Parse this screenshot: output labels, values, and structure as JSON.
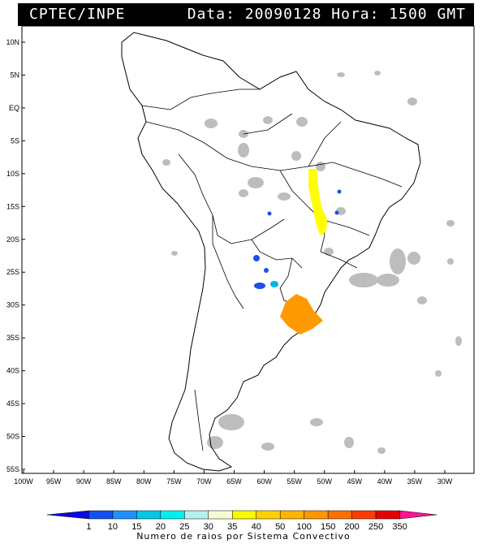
{
  "header": {
    "source": "CPTEC/INPE",
    "datetime": "Data: 20090128 Hora: 1500 GMT"
  },
  "lat_labels": [
    "10N",
    "5N",
    "EQ",
    "5S",
    "10S",
    "15S",
    "20S",
    "25S",
    "30S",
    "35S",
    "40S",
    "45S",
    "50S",
    "55S"
  ],
  "lon_labels": [
    "100W",
    "95W",
    "90W",
    "85W",
    "80W",
    "75W",
    "70W",
    "65W",
    "60W",
    "55W",
    "50W",
    "45W",
    "40W",
    "35W",
    "30W"
  ],
  "legend": {
    "title": "Numero de raios por Sistema Convectivo",
    "values": [
      "1",
      "10",
      "15",
      "20",
      "25",
      "30",
      "35",
      "40",
      "50",
      "100",
      "150",
      "200",
      "250",
      "350"
    ],
    "colors": [
      "#0a0ae0",
      "#1450f0",
      "#1e90ff",
      "#00c8e6",
      "#00f0f0",
      "#b4f0f0",
      "#fafad2",
      "#fafa00",
      "#ffd200",
      "#ffb400",
      "#ff9600",
      "#ff6e00",
      "#ff3c00",
      "#e60000",
      "#ff1493"
    ]
  },
  "storm_colors": {
    "yellow": "#ffff00",
    "orange": "#ff9900",
    "blue": "#1e4fe8",
    "cyan": "#00b4e6",
    "cloud_gray": "#bdbdbd"
  }
}
